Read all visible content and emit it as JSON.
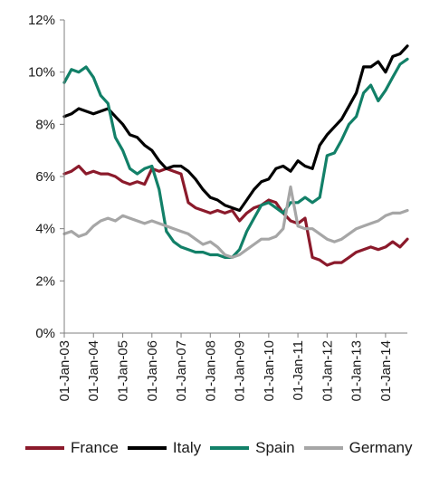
{
  "chart_data": {
    "type": "line",
    "title": "",
    "xlabel": "",
    "ylabel": "",
    "ylim": [
      0,
      12
    ],
    "y_ticks": [
      "0%",
      "2%",
      "4%",
      "6%",
      "8%",
      "10%",
      "12%"
    ],
    "x_ticks": [
      "01-Jan-03",
      "01-Jan-04",
      "01-Jan-05",
      "01-Jan-06",
      "01-Jan-07",
      "01-Jan-08",
      "01-Jan-09",
      "01-Jan-10",
      "01-Jan-11",
      "01-Jan-12",
      "01-Jan-13",
      "01-Jan-14"
    ],
    "x_range": [
      "2003-01-01",
      "2014-10-01"
    ],
    "legend_position": "bottom",
    "grid": false,
    "series": [
      {
        "name": "France",
        "color": "#8b1a2b",
        "x": [
          "2003-01-01",
          "2003-04-01",
          "2003-07-01",
          "2003-10-01",
          "2004-01-01",
          "2004-04-01",
          "2004-07-01",
          "2004-10-01",
          "2005-01-01",
          "2005-04-01",
          "2005-07-01",
          "2005-10-01",
          "2006-01-01",
          "2006-04-01",
          "2006-07-01",
          "2006-10-01",
          "2007-01-01",
          "2007-04-01",
          "2007-07-01",
          "2007-10-01",
          "2008-01-01",
          "2008-04-01",
          "2008-07-01",
          "2008-10-01",
          "2009-01-01",
          "2009-04-01",
          "2009-07-01",
          "2009-10-01",
          "2010-01-01",
          "2010-04-01",
          "2010-07-01",
          "2010-10-01",
          "2011-01-01",
          "2011-04-01",
          "2011-07-01",
          "2011-10-01",
          "2012-01-01",
          "2012-04-01",
          "2012-07-01",
          "2012-10-01",
          "2013-01-01",
          "2013-04-01",
          "2013-07-01",
          "2013-10-01",
          "2014-01-01",
          "2014-04-01",
          "2014-07-01",
          "2014-10-01"
        ],
        "values": [
          6.1,
          6.2,
          6.4,
          6.1,
          6.2,
          6.1,
          6.1,
          6.0,
          5.8,
          5.7,
          5.8,
          5.7,
          6.3,
          6.2,
          6.3,
          6.2,
          6.1,
          5.0,
          4.8,
          4.7,
          4.6,
          4.7,
          4.6,
          4.7,
          4.3,
          4.6,
          4.8,
          4.9,
          5.1,
          5.0,
          4.6,
          4.3,
          4.2,
          4.4,
          2.9,
          2.8,
          2.6,
          2.7,
          2.7,
          2.9,
          3.1,
          3.2,
          3.3,
          3.2,
          3.3,
          3.5,
          3.3,
          3.6
        ]
      },
      {
        "name": "Italy",
        "color": "#000000",
        "x": [
          "2003-01-01",
          "2003-04-01",
          "2003-07-01",
          "2003-10-01",
          "2004-01-01",
          "2004-04-01",
          "2004-07-01",
          "2004-10-01",
          "2005-01-01",
          "2005-04-01",
          "2005-07-01",
          "2005-10-01",
          "2006-01-01",
          "2006-04-01",
          "2006-07-01",
          "2006-10-01",
          "2007-01-01",
          "2007-04-01",
          "2007-07-01",
          "2007-10-01",
          "2008-01-01",
          "2008-04-01",
          "2008-07-01",
          "2008-10-01",
          "2009-01-01",
          "2009-04-01",
          "2009-07-01",
          "2009-10-01",
          "2010-01-01",
          "2010-04-01",
          "2010-07-01",
          "2010-10-01",
          "2011-01-01",
          "2011-04-01",
          "2011-07-01",
          "2011-10-01",
          "2012-01-01",
          "2012-04-01",
          "2012-07-01",
          "2012-10-01",
          "2013-01-01",
          "2013-04-01",
          "2013-07-01",
          "2013-10-01",
          "2014-01-01",
          "2014-04-01",
          "2014-07-01",
          "2014-10-01"
        ],
        "values": [
          8.3,
          8.4,
          8.6,
          8.5,
          8.4,
          8.5,
          8.6,
          8.3,
          8.0,
          7.6,
          7.5,
          7.2,
          7.0,
          6.6,
          6.3,
          6.4,
          6.4,
          6.2,
          5.9,
          5.5,
          5.2,
          5.1,
          4.9,
          4.8,
          4.7,
          5.1,
          5.5,
          5.8,
          5.9,
          6.3,
          6.4,
          6.2,
          6.6,
          6.4,
          6.3,
          7.2,
          7.6,
          7.9,
          8.2,
          8.7,
          9.2,
          10.2,
          10.2,
          10.4,
          10.0,
          10.6,
          10.7,
          11.0
        ]
      },
      {
        "name": "Spain",
        "color": "#128068",
        "x": [
          "2003-01-01",
          "2003-04-01",
          "2003-07-01",
          "2003-10-01",
          "2004-01-01",
          "2004-04-01",
          "2004-07-01",
          "2004-10-01",
          "2005-01-01",
          "2005-04-01",
          "2005-07-01",
          "2005-10-01",
          "2006-01-01",
          "2006-04-01",
          "2006-07-01",
          "2006-10-01",
          "2007-01-01",
          "2007-04-01",
          "2007-07-01",
          "2007-10-01",
          "2008-01-01",
          "2008-04-01",
          "2008-07-01",
          "2008-10-01",
          "2009-01-01",
          "2009-04-01",
          "2009-07-01",
          "2009-10-01",
          "2010-01-01",
          "2010-04-01",
          "2010-07-01",
          "2010-10-01",
          "2011-01-01",
          "2011-04-01",
          "2011-07-01",
          "2011-10-01",
          "2012-01-01",
          "2012-04-01",
          "2012-07-01",
          "2012-10-01",
          "2013-01-01",
          "2013-04-01",
          "2013-07-01",
          "2013-10-01",
          "2014-01-01",
          "2014-04-01",
          "2014-07-01",
          "2014-10-01"
        ],
        "values": [
          9.6,
          10.1,
          10.0,
          10.2,
          9.8,
          9.1,
          8.8,
          7.5,
          7.0,
          6.3,
          6.1,
          6.3,
          6.4,
          5.5,
          3.9,
          3.5,
          3.3,
          3.2,
          3.1,
          3.1,
          3.0,
          3.0,
          2.9,
          2.9,
          3.2,
          3.9,
          4.4,
          4.9,
          5.0,
          4.8,
          4.6,
          5.0,
          5.0,
          5.2,
          5.0,
          5.2,
          6.8,
          6.9,
          7.4,
          8.0,
          8.3,
          9.2,
          9.5,
          8.9,
          9.3,
          9.8,
          10.3,
          10.5
        ]
      },
      {
        "name": "Germany",
        "color": "#a6a6a6",
        "x": [
          "2003-01-01",
          "2003-04-01",
          "2003-07-01",
          "2003-10-01",
          "2004-01-01",
          "2004-04-01",
          "2004-07-01",
          "2004-10-01",
          "2005-01-01",
          "2005-04-01",
          "2005-07-01",
          "2005-10-01",
          "2006-01-01",
          "2006-04-01",
          "2006-07-01",
          "2006-10-01",
          "2007-01-01",
          "2007-04-01",
          "2007-07-01",
          "2007-10-01",
          "2008-01-01",
          "2008-04-01",
          "2008-07-01",
          "2008-10-01",
          "2009-01-01",
          "2009-04-01",
          "2009-07-01",
          "2009-10-01",
          "2010-01-01",
          "2010-04-01",
          "2010-07-01",
          "2010-10-01",
          "2011-01-01",
          "2011-04-01",
          "2011-07-01",
          "2011-10-01",
          "2012-01-01",
          "2012-04-01",
          "2012-07-01",
          "2012-10-01",
          "2013-01-01",
          "2013-04-01",
          "2013-07-01",
          "2013-10-01",
          "2014-01-01",
          "2014-04-01",
          "2014-07-01",
          "2014-10-01"
        ],
        "values": [
          3.8,
          3.9,
          3.7,
          3.8,
          4.1,
          4.3,
          4.4,
          4.3,
          4.5,
          4.4,
          4.3,
          4.2,
          4.3,
          4.2,
          4.1,
          4.0,
          3.9,
          3.8,
          3.6,
          3.4,
          3.5,
          3.3,
          3.0,
          2.9,
          3.0,
          3.2,
          3.4,
          3.6,
          3.6,
          3.7,
          4.0,
          5.6,
          4.1,
          4.0,
          4.0,
          3.8,
          3.6,
          3.5,
          3.6,
          3.8,
          4.0,
          4.1,
          4.2,
          4.3,
          4.5,
          4.6,
          4.6,
          4.7
        ]
      }
    ]
  }
}
